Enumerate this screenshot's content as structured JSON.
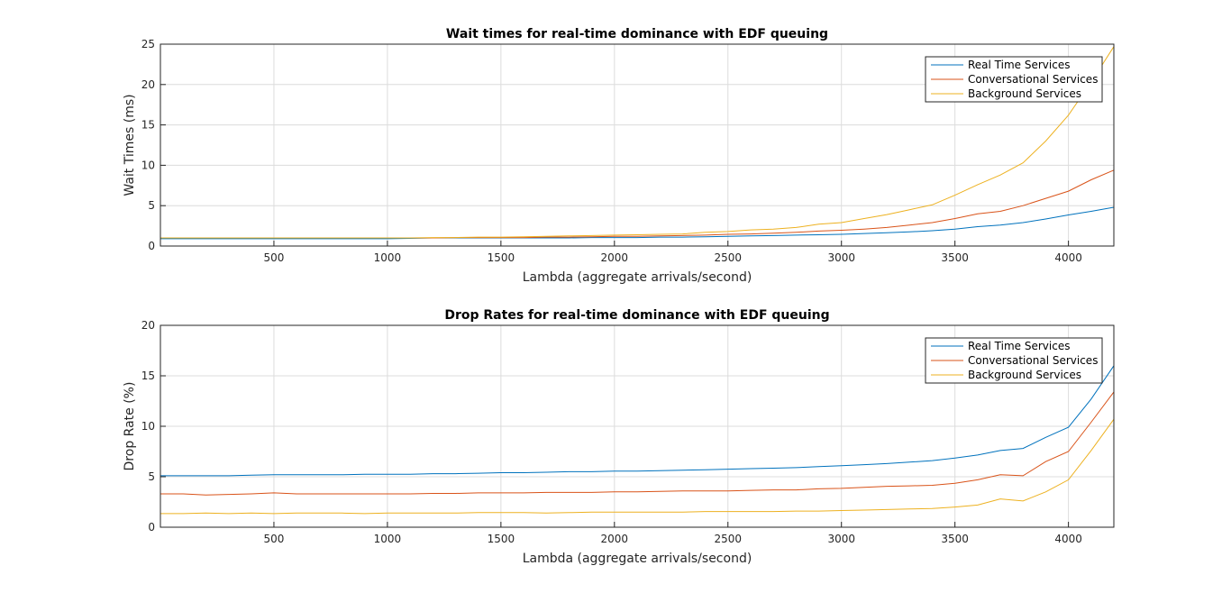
{
  "colors": {
    "real_time": "#0072bd",
    "conversational": "#d95319",
    "background": "#edb120"
  },
  "chart_data": [
    {
      "type": "line",
      "title": "Wait times for real-time dominance with EDF queuing",
      "xlabel": "Lambda (aggregate arrivals/second)",
      "ylabel": "Wait Times (ms)",
      "xlim": [
        0,
        4200
      ],
      "ylim": [
        0,
        25
      ],
      "xticks": [
        500,
        1000,
        1500,
        2000,
        2500,
        3000,
        3500,
        4000
      ],
      "yticks": [
        0,
        5,
        10,
        15,
        20,
        25
      ],
      "grid": true,
      "legend_position": "top-right",
      "x": [
        0,
        100,
        200,
        300,
        400,
        500,
        600,
        700,
        800,
        900,
        1000,
        1100,
        1200,
        1300,
        1400,
        1500,
        1600,
        1700,
        1800,
        1900,
        2000,
        2100,
        2200,
        2300,
        2400,
        2500,
        2600,
        2700,
        2800,
        2900,
        3000,
        3100,
        3200,
        3300,
        3400,
        3500,
        3600,
        3700,
        3800,
        3900,
        4000,
        4100,
        4200
      ],
      "series": [
        {
          "name": "Real Time Services",
          "color": "#0072bd",
          "values": [
            0.9,
            0.9,
            0.9,
            0.9,
            0.9,
            0.9,
            0.9,
            0.9,
            0.9,
            0.9,
            0.9,
            0.95,
            1.0,
            1.0,
            1.0,
            1.0,
            1.0,
            1.0,
            1.0,
            1.05,
            1.05,
            1.05,
            1.1,
            1.1,
            1.15,
            1.2,
            1.25,
            1.3,
            1.35,
            1.4,
            1.45,
            1.55,
            1.65,
            1.75,
            1.9,
            2.1,
            2.4,
            2.6,
            2.9,
            3.35,
            3.85,
            4.3,
            4.8
          ]
        },
        {
          "name": "Conversational Services",
          "color": "#d95319",
          "values": [
            1.0,
            1.0,
            1.0,
            1.0,
            1.0,
            1.0,
            1.0,
            1.0,
            1.0,
            1.0,
            1.0,
            1.0,
            1.0,
            1.05,
            1.05,
            1.05,
            1.05,
            1.1,
            1.1,
            1.15,
            1.2,
            1.2,
            1.25,
            1.3,
            1.35,
            1.45,
            1.5,
            1.6,
            1.7,
            1.85,
            1.95,
            2.1,
            2.3,
            2.6,
            2.9,
            3.4,
            4.0,
            4.3,
            5.0,
            5.9,
            6.8,
            8.2,
            9.4
          ]
        },
        {
          "name": "Background Services",
          "color": "#edb120",
          "values": [
            1.0,
            1.0,
            1.0,
            1.0,
            1.0,
            1.0,
            1.0,
            1.0,
            1.0,
            1.0,
            1.0,
            1.0,
            1.05,
            1.05,
            1.1,
            1.1,
            1.15,
            1.2,
            1.25,
            1.3,
            1.35,
            1.4,
            1.45,
            1.5,
            1.7,
            1.8,
            2.0,
            2.1,
            2.3,
            2.7,
            2.9,
            3.4,
            3.9,
            4.5,
            5.1,
            6.3,
            7.6,
            8.8,
            10.3,
            13.0,
            16.2,
            20.3,
            24.7
          ]
        }
      ]
    },
    {
      "type": "line",
      "title": "Drop Rates for real-time dominance with EDF queuing",
      "xlabel": "Lambda (aggregate arrivals/second)",
      "ylabel": "Drop Rate (%)",
      "xlim": [
        0,
        4200
      ],
      "ylim": [
        0,
        20
      ],
      "xticks": [
        500,
        1000,
        1500,
        2000,
        2500,
        3000,
        3500,
        4000
      ],
      "yticks": [
        0,
        5,
        10,
        15,
        20
      ],
      "grid": true,
      "legend_position": "top-right",
      "x": [
        0,
        100,
        200,
        300,
        400,
        500,
        600,
        700,
        800,
        900,
        1000,
        1100,
        1200,
        1300,
        1400,
        1500,
        1600,
        1700,
        1800,
        1900,
        2000,
        2100,
        2200,
        2300,
        2400,
        2500,
        2600,
        2700,
        2800,
        2900,
        3000,
        3100,
        3200,
        3300,
        3400,
        3500,
        3600,
        3700,
        3800,
        3900,
        4000,
        4100,
        4200
      ],
      "series": [
        {
          "name": "Real Time Services",
          "color": "#0072bd",
          "values": [
            5.1,
            5.1,
            5.1,
            5.1,
            5.15,
            5.2,
            5.2,
            5.2,
            5.2,
            5.25,
            5.25,
            5.25,
            5.3,
            5.3,
            5.35,
            5.4,
            5.4,
            5.45,
            5.5,
            5.5,
            5.55,
            5.55,
            5.6,
            5.65,
            5.7,
            5.75,
            5.8,
            5.85,
            5.9,
            6.0,
            6.1,
            6.2,
            6.3,
            6.45,
            6.6,
            6.85,
            7.15,
            7.6,
            7.8,
            8.9,
            9.9,
            12.7,
            16.0
          ]
        },
        {
          "name": "Conversational Services",
          "color": "#d95319",
          "values": [
            3.3,
            3.3,
            3.2,
            3.25,
            3.3,
            3.4,
            3.3,
            3.3,
            3.3,
            3.3,
            3.3,
            3.3,
            3.35,
            3.35,
            3.4,
            3.4,
            3.4,
            3.45,
            3.45,
            3.45,
            3.5,
            3.5,
            3.55,
            3.6,
            3.6,
            3.6,
            3.65,
            3.7,
            3.7,
            3.8,
            3.85,
            3.95,
            4.05,
            4.1,
            4.15,
            4.35,
            4.7,
            5.2,
            5.1,
            6.5,
            7.5,
            10.4,
            13.4
          ]
        },
        {
          "name": "Background Services",
          "color": "#edb120",
          "values": [
            1.35,
            1.35,
            1.4,
            1.35,
            1.4,
            1.35,
            1.4,
            1.4,
            1.4,
            1.35,
            1.4,
            1.4,
            1.4,
            1.4,
            1.45,
            1.45,
            1.45,
            1.4,
            1.45,
            1.5,
            1.5,
            1.5,
            1.5,
            1.5,
            1.55,
            1.55,
            1.55,
            1.55,
            1.6,
            1.6,
            1.65,
            1.7,
            1.75,
            1.8,
            1.85,
            2.0,
            2.2,
            2.8,
            2.6,
            3.5,
            4.7,
            7.6,
            10.7
          ]
        }
      ]
    }
  ]
}
